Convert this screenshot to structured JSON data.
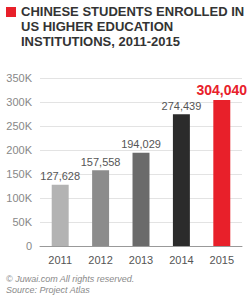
{
  "chart_data": {
    "type": "bar",
    "title": "CHINESE STUDENTS ENROLLED IN US HIGHER EDUCATION INSTITUTIONS, 2011-2015",
    "categories": [
      "2011",
      "2012",
      "2013",
      "2014",
      "2015"
    ],
    "values": [
      127628,
      157558,
      194029,
      274439,
      304040
    ],
    "value_labels": [
      "127,628",
      "157,558",
      "194,029",
      "274,439",
      "304,040"
    ],
    "colors": [
      "#b3b3b3",
      "#8c8c8c",
      "#6b6b6b",
      "#2b2b2b",
      "#e8202a"
    ],
    "ylim": [
      0,
      350000
    ],
    "yticks": [
      0,
      {
        "value": 50000,
        "label": "50K"
      },
      {
        "value": 100000,
        "label": "100K"
      },
      {
        "value": 150000,
        "label": "150K"
      },
      {
        "value": 200000,
        "label": "200K"
      },
      {
        "value": 250000,
        "label": "250K"
      },
      {
        "value": 300000,
        "label": "300K"
      },
      {
        "value": 350000,
        "label": "350K"
      }
    ],
    "grid": true,
    "data_labels": true,
    "annotations": [
      "© Juwai.com All rights reserved.",
      "Source: Project Atlas"
    ]
  }
}
